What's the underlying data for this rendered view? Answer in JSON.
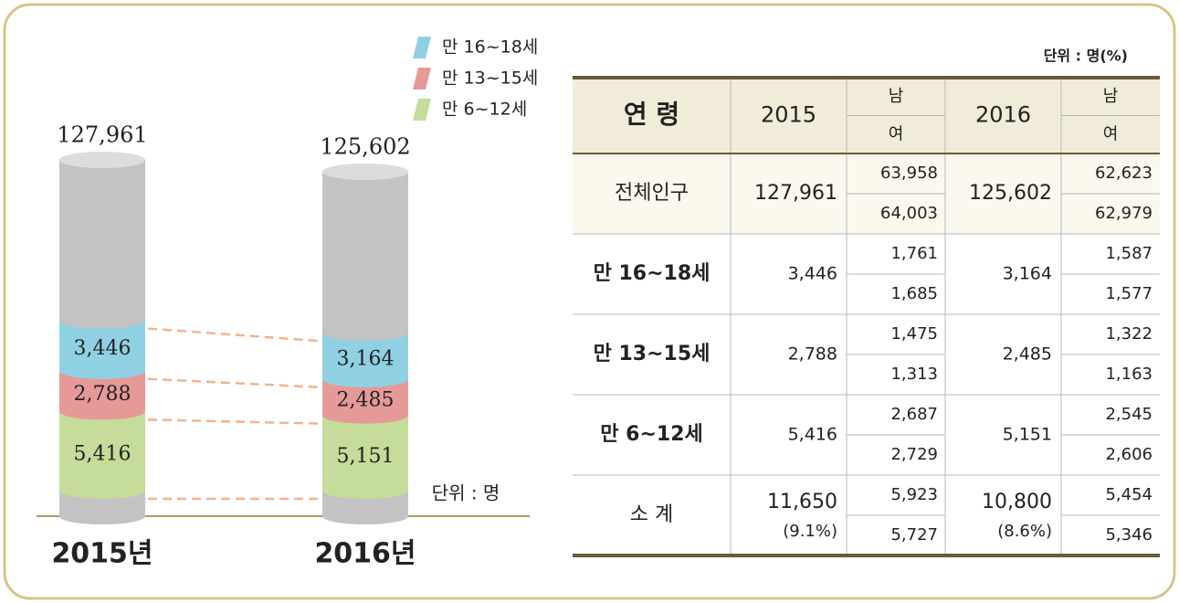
{
  "chart_data": {
    "type": "cylinder",
    "categories": [
      "2015년",
      "2016년"
    ],
    "totals": [
      "127,961",
      "125,602"
    ],
    "unit": "단위 : 명",
    "series": [
      {
        "name": "만 16~18세",
        "color": "#8fd1e3",
        "values": [
          3446,
          3164
        ],
        "value_labels": [
          "3,446",
          "3,164"
        ]
      },
      {
        "name": "만 13~15세",
        "color": "#e59a97",
        "values": [
          2788,
          2485
        ],
        "value_labels": [
          "2,788",
          "2,485"
        ]
      },
      {
        "name": "만  6~12세",
        "color": "#c5dc9a",
        "values": [
          5416,
          5151
        ],
        "value_labels": [
          "5,416",
          "5,151"
        ]
      }
    ]
  },
  "table": {
    "unit": "단위 : 명(%)",
    "header": [
      "연  령",
      "2015",
      "남",
      "여",
      "2016",
      "남",
      "여"
    ],
    "rows": [
      {
        "label": "전체인구",
        "y2015": "127,961",
        "m2015": "63,958",
        "f2015": "64,003",
        "y2016": "125,602",
        "m2016": "62,623",
        "f2016": "62,979"
      },
      {
        "label": "만 16~18세",
        "y2015": "3,446",
        "m2015": "1,761",
        "f2015": "1,685",
        "y2016": "3,164",
        "m2016": "1,587",
        "f2016": "1,577"
      },
      {
        "label": "만 13~15세",
        "y2015": "2,788",
        "m2015": "1,475",
        "f2015": "1,313",
        "y2016": "2,485",
        "m2016": "1,322",
        "f2016": "1,163"
      },
      {
        "label": "만 6~12세",
        "y2015": "5,416",
        "m2015": "2,687",
        "f2015": "2,729",
        "y2016": "5,151",
        "m2016": "2,545",
        "f2016": "2,606"
      },
      {
        "label": "소  계",
        "y2015": "11,650",
        "p2015": "(9.1%)",
        "m2015": "5,923",
        "f2015": "5,727",
        "y2016": "10,800",
        "p2016": "(8.6%)",
        "m2016": "5,454",
        "f2016": "5,346"
      }
    ]
  }
}
